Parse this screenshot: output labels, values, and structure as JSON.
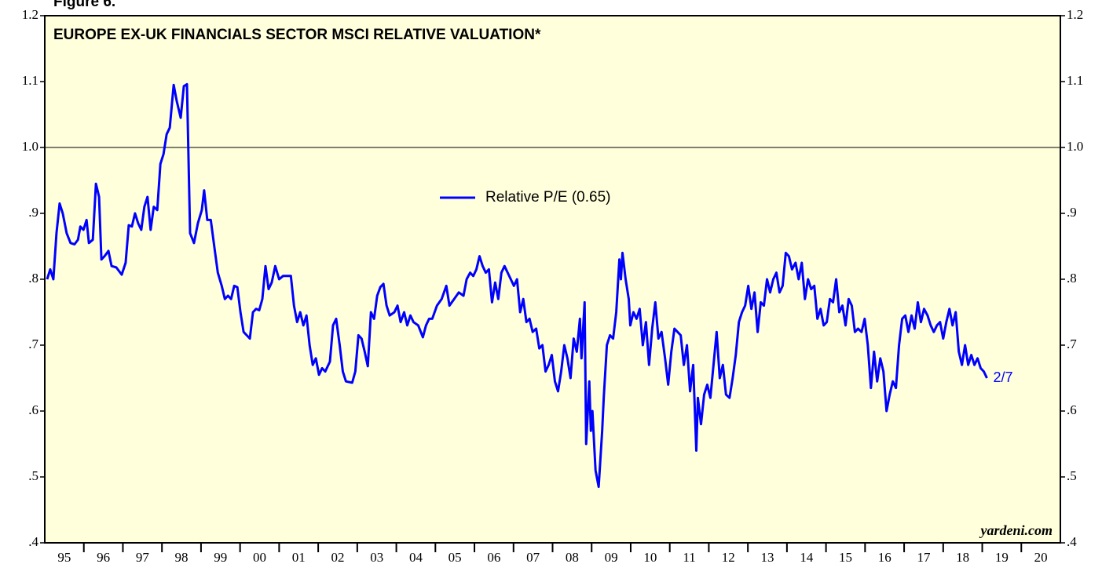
{
  "chart_data": {
    "type": "line",
    "figure_label": "Figure 6.",
    "title": "EUROPE EX-UK FINANCIALS SECTOR MSCI RELATIVE VALUATION*",
    "annotation": "2/7",
    "source": "yardeni.com",
    "xlim": [
      1995,
      2021
    ],
    "xticks": [
      {
        "value": 1995,
        "label": "95"
      },
      {
        "value": 1996,
        "label": "96"
      },
      {
        "value": 1997,
        "label": "97"
      },
      {
        "value": 1998,
        "label": "98"
      },
      {
        "value": 1999,
        "label": "99"
      },
      {
        "value": 2000,
        "label": "00"
      },
      {
        "value": 2001,
        "label": "01"
      },
      {
        "value": 2002,
        "label": "02"
      },
      {
        "value": 2003,
        "label": "03"
      },
      {
        "value": 2004,
        "label": "04"
      },
      {
        "value": 2005,
        "label": "05"
      },
      {
        "value": 2006,
        "label": "06"
      },
      {
        "value": 2007,
        "label": "07"
      },
      {
        "value": 2008,
        "label": "08"
      },
      {
        "value": 2009,
        "label": "09"
      },
      {
        "value": 2010,
        "label": "10"
      },
      {
        "value": 2011,
        "label": "11"
      },
      {
        "value": 2012,
        "label": "12"
      },
      {
        "value": 2013,
        "label": "13"
      },
      {
        "value": 2014,
        "label": "14"
      },
      {
        "value": 2015,
        "label": "15"
      },
      {
        "value": 2016,
        "label": "16"
      },
      {
        "value": 2017,
        "label": "17"
      },
      {
        "value": 2018,
        "label": "18"
      },
      {
        "value": 2019,
        "label": "19"
      },
      {
        "value": 2020,
        "label": "20"
      }
    ],
    "ylim": [
      0.4,
      1.2
    ],
    "yticks": [
      {
        "value": 0.4,
        "label": ".4"
      },
      {
        "value": 0.5,
        "label": ".5"
      },
      {
        "value": 0.6,
        "label": ".6"
      },
      {
        "value": 0.7,
        "label": ".7"
      },
      {
        "value": 0.8,
        "label": ".8"
      },
      {
        "value": 0.9,
        "label": ".9"
      },
      {
        "value": 1,
        "label": "1.0"
      },
      1.1,
      1.2
    ],
    "hline": 1,
    "grid": false,
    "x": [
      1995.06,
      1995.14,
      1995.22,
      1995.3,
      1995.38,
      1995.46,
      1995.56,
      1995.66,
      1995.76,
      1995.85,
      1995.91,
      1995.99,
      1996.07,
      1996.13,
      1996.23,
      1996.31,
      1996.39,
      1996.45,
      1996.53,
      1996.63,
      1996.71,
      1996.83,
      1996.97,
      1997.07,
      1997.15,
      1997.23,
      1997.31,
      1997.39,
      1997.47,
      1997.55,
      1997.63,
      1997.71,
      1997.79,
      1997.88,
      1997.96,
      1998.04,
      1998.12,
      1998.2,
      1998.3,
      1998.38,
      1998.48,
      1998.56,
      1998.64,
      1998.72,
      1998.82,
      1998.92,
      1999.02,
      1999.08,
      1999.16,
      1999.25,
      1999.35,
      1999.43,
      1999.53,
      1999.61,
      1999.69,
      1999.77,
      1999.85,
      1999.93,
      2000.01,
      2000.09,
      2000.17,
      2000.25,
      2000.33,
      2000.41,
      2000.49,
      2000.57,
      2000.65,
      2000.73,
      2000.81,
      2000.9,
      2001.0,
      2001.1,
      2001.3,
      2001.38,
      2001.46,
      2001.54,
      2001.62,
      2001.7,
      2001.78,
      2001.86,
      2001.94,
      2002.02,
      2002.1,
      2002.18,
      2002.3,
      2002.38,
      2002.46,
      2002.55,
      2002.63,
      2002.71,
      2002.87,
      2002.95,
      2003.03,
      2003.11,
      2003.19,
      2003.27,
      2003.35,
      2003.43,
      2003.51,
      2003.59,
      2003.67,
      2003.75,
      2003.83,
      2003.95,
      2004.03,
      2004.11,
      2004.2,
      2004.28,
      2004.36,
      2004.44,
      2004.56,
      2004.68,
      2004.76,
      2004.84,
      2004.92,
      2005.04,
      2005.16,
      2005.28,
      2005.36,
      2005.48,
      2005.6,
      2005.72,
      2005.8,
      2005.89,
      2005.97,
      2006.05,
      2006.13,
      2006.21,
      2006.29,
      2006.37,
      2006.45,
      2006.53,
      2006.61,
      2006.69,
      2006.77,
      2006.85,
      2006.93,
      2007.01,
      2007.09,
      2007.17,
      2007.25,
      2007.33,
      2007.41,
      2007.49,
      2007.58,
      2007.66,
      2007.74,
      2007.82,
      2007.9,
      2007.98,
      2008.06,
      2008.14,
      2008.22,
      2008.3,
      2008.38,
      2008.46,
      2008.54,
      2008.62,
      2008.7,
      2008.74,
      2008.82,
      2008.86,
      2008.94,
      2008.98,
      2009.02,
      2009.1,
      2009.18,
      2009.27,
      2009.31,
      2009.39,
      2009.47,
      2009.55,
      2009.63,
      2009.71,
      2009.75,
      2009.79,
      2009.87,
      2009.95,
      2009.99,
      2010.07,
      2010.15,
      2010.23,
      2010.31,
      2010.39,
      2010.47,
      2010.55,
      2010.63,
      2010.71,
      2010.79,
      2010.88,
      2010.96,
      2011.04,
      2011.12,
      2011.2,
      2011.28,
      2011.36,
      2011.44,
      2011.52,
      2011.6,
      2011.68,
      2011.72,
      2011.8,
      2011.88,
      2011.96,
      2012.04,
      2012.12,
      2012.2,
      2012.28,
      2012.36,
      2012.44,
      2012.53,
      2012.61,
      2012.69,
      2012.77,
      2012.85,
      2012.93,
      2013.01,
      2013.09,
      2013.17,
      2013.25,
      2013.33,
      2013.41,
      2013.49,
      2013.57,
      2013.65,
      2013.73,
      2013.81,
      2013.89,
      2013.97,
      2014.05,
      2014.13,
      2014.22,
      2014.3,
      2014.38,
      2014.46,
      2014.54,
      2014.62,
      2014.7,
      2014.78,
      2014.86,
      2014.94,
      2015.02,
      2015.1,
      2015.18,
      2015.26,
      2015.34,
      2015.42,
      2015.5,
      2015.58,
      2015.66,
      2015.74,
      2015.82,
      2015.91,
      2015.99,
      2016.07,
      2016.15,
      2016.23,
      2016.31,
      2016.39,
      2016.47,
      2016.55,
      2016.63,
      2016.71,
      2016.79,
      2016.87,
      2016.95,
      2017.03,
      2017.11,
      2017.19,
      2017.27,
      2017.35,
      2017.43,
      2017.51,
      2017.6,
      2017.68,
      2017.76,
      2017.84,
      2017.92,
      2018.0,
      2018.08,
      2018.16,
      2018.24,
      2018.32,
      2018.4,
      2018.48,
      2018.56,
      2018.64,
      2018.72,
      2018.8,
      2018.88,
      2018.96,
      2019.04,
      2019.12
    ],
    "series": [
      {
        "name": "Relative P/E (0.65)",
        "color": "#0000ff",
        "values": [
          0.8,
          0.815,
          0.8,
          0.87,
          0.915,
          0.9,
          0.87,
          0.855,
          0.853,
          0.86,
          0.88,
          0.875,
          0.89,
          0.855,
          0.86,
          0.945,
          0.925,
          0.83,
          0.835,
          0.843,
          0.82,
          0.818,
          0.807,
          0.825,
          0.882,
          0.88,
          0.9,
          0.885,
          0.875,
          0.91,
          0.925,
          0.875,
          0.91,
          0.905,
          0.975,
          0.99,
          1.02,
          1.03,
          1.095,
          1.07,
          1.045,
          1.093,
          1.096,
          0.87,
          0.855,
          0.885,
          0.905,
          0.935,
          0.89,
          0.89,
          0.845,
          0.81,
          0.79,
          0.77,
          0.775,
          0.77,
          0.79,
          0.788,
          0.75,
          0.72,
          0.715,
          0.71,
          0.75,
          0.755,
          0.753,
          0.77,
          0.82,
          0.785,
          0.795,
          0.82,
          0.8,
          0.805,
          0.805,
          0.76,
          0.735,
          0.75,
          0.73,
          0.745,
          0.7,
          0.67,
          0.68,
          0.655,
          0.665,
          0.66,
          0.675,
          0.73,
          0.74,
          0.7,
          0.66,
          0.645,
          0.643,
          0.66,
          0.715,
          0.71,
          0.69,
          0.668,
          0.75,
          0.74,
          0.775,
          0.788,
          0.793,
          0.76,
          0.745,
          0.75,
          0.76,
          0.735,
          0.75,
          0.73,
          0.745,
          0.735,
          0.73,
          0.712,
          0.73,
          0.74,
          0.74,
          0.76,
          0.77,
          0.79,
          0.76,
          0.77,
          0.78,
          0.775,
          0.8,
          0.81,
          0.805,
          0.815,
          0.835,
          0.82,
          0.81,
          0.815,
          0.765,
          0.795,
          0.77,
          0.81,
          0.82,
          0.81,
          0.8,
          0.79,
          0.8,
          0.75,
          0.77,
          0.735,
          0.74,
          0.72,
          0.725,
          0.695,
          0.7,
          0.66,
          0.67,
          0.685,
          0.645,
          0.63,
          0.66,
          0.7,
          0.68,
          0.65,
          0.71,
          0.69,
          0.74,
          0.68,
          0.765,
          0.55,
          0.645,
          0.57,
          0.6,
          0.51,
          0.485,
          0.57,
          0.62,
          0.7,
          0.715,
          0.71,
          0.75,
          0.83,
          0.8,
          0.84,
          0.8,
          0.77,
          0.73,
          0.75,
          0.74,
          0.755,
          0.7,
          0.735,
          0.67,
          0.725,
          0.765,
          0.71,
          0.72,
          0.68,
          0.64,
          0.69,
          0.725,
          0.72,
          0.715,
          0.67,
          0.7,
          0.63,
          0.67,
          0.54,
          0.62,
          0.58,
          0.625,
          0.64,
          0.62,
          0.67,
          0.72,
          0.65,
          0.67,
          0.625,
          0.62,
          0.65,
          0.685,
          0.735,
          0.75,
          0.76,
          0.79,
          0.755,
          0.78,
          0.72,
          0.765,
          0.76,
          0.8,
          0.78,
          0.8,
          0.81,
          0.78,
          0.79,
          0.84,
          0.835,
          0.815,
          0.825,
          0.8,
          0.825,
          0.77,
          0.8,
          0.785,
          0.79,
          0.74,
          0.755,
          0.73,
          0.735,
          0.77,
          0.765,
          0.8,
          0.75,
          0.76,
          0.73,
          0.77,
          0.76,
          0.72,
          0.725,
          0.72,
          0.74,
          0.7,
          0.635,
          0.69,
          0.645,
          0.68,
          0.66,
          0.6,
          0.625,
          0.645,
          0.635,
          0.7,
          0.74,
          0.745,
          0.72,
          0.745,
          0.725,
          0.765,
          0.735,
          0.755,
          0.745,
          0.73,
          0.72,
          0.73,
          0.735,
          0.71,
          0.735,
          0.755,
          0.73,
          0.75,
          0.69,
          0.67,
          0.7,
          0.67,
          0.685,
          0.67,
          0.68,
          0.665,
          0.66,
          0.65
        ]
      }
    ]
  }
}
